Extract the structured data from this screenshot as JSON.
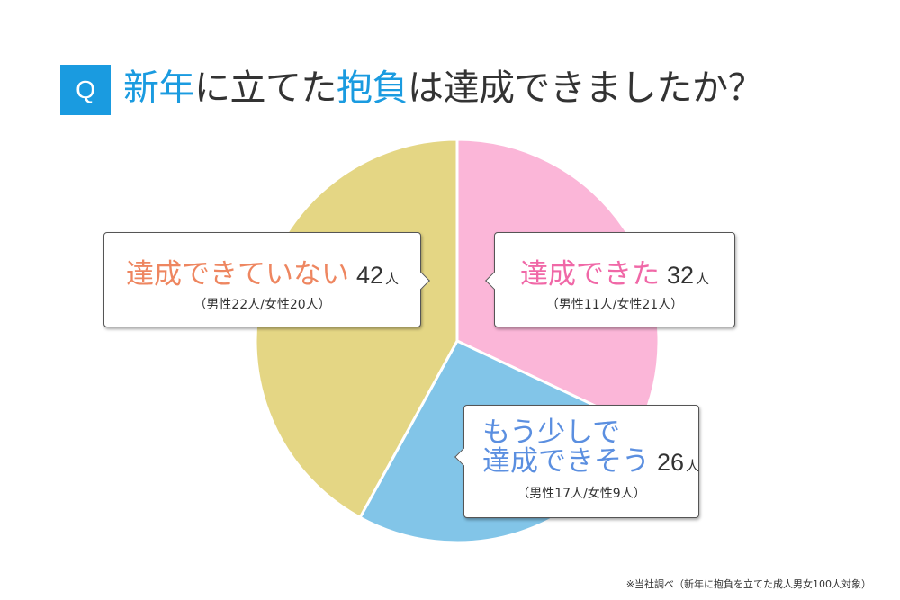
{
  "header": {
    "badge": "Q",
    "title_parts": [
      "新年",
      "に立てた",
      "抱負",
      "は達成できましたか？"
    ]
  },
  "chart_data": {
    "type": "pie",
    "title": "新年に立てた抱負は達成できましたか？",
    "unit": "人",
    "slices": [
      {
        "label": "達成できた",
        "value": 32,
        "male": "男性11人",
        "female": "女性21人",
        "breakdown": "（男性11人/女性21人）",
        "color": "#fbb6d8",
        "label_color": "#f068a7"
      },
      {
        "label": "もう少しで達成できそう",
        "label_lines": [
          "もう少しで",
          "達成できそう"
        ],
        "value": 26,
        "male": "男性17人",
        "female": "女性9人",
        "breakdown": "（男性17人/女性9人）",
        "color": "#82c5e8",
        "label_color": "#5b8fe0"
      },
      {
        "label": "達成できていない",
        "value": 42,
        "male": "男性22人",
        "female": "女性20人",
        "breakdown": "（男性22人/女性20人）",
        "color": "#e4d684",
        "label_color": "#ee8660"
      }
    ],
    "start_angle": "12 o'clock",
    "direction": "clockwise"
  },
  "footnote": "※当社調べ（新年に抱負を立てた成人男女100人対象）"
}
